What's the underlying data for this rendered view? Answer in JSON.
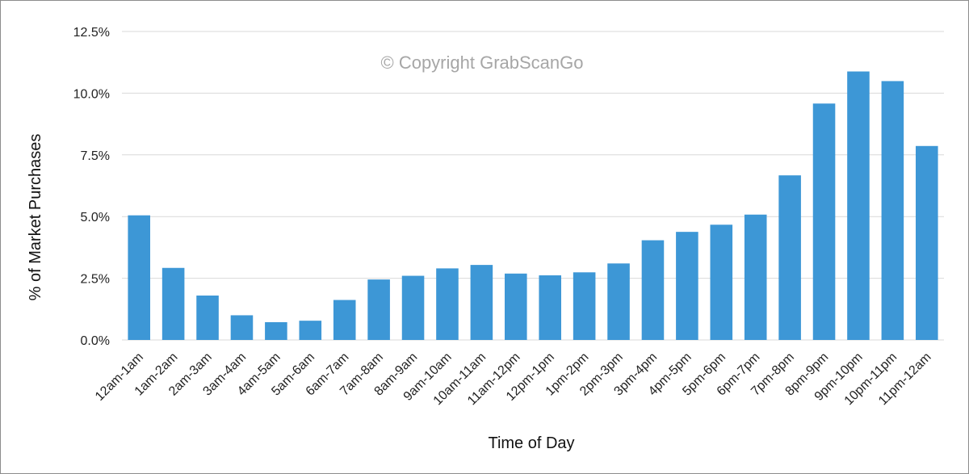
{
  "colors": {
    "bar": "#3d97d6",
    "grid": "#d9d9d9",
    "watermark": "#a6a6a6"
  },
  "watermark": "© Copyright GrabScanGo",
  "chart_data": {
    "type": "bar",
    "xlabel": "Time of Day",
    "ylabel": "% of Market Purchases",
    "ylim": [
      0,
      12.5
    ],
    "yticks": [
      0,
      2.5,
      5.0,
      7.5,
      10.0,
      12.5
    ],
    "ytick_labels": [
      "0.0%",
      "2.5%",
      "5.0%",
      "7.5%",
      "10.0%",
      "12.5%"
    ],
    "grid": true,
    "legend": "none",
    "categories": [
      "12am-1am",
      "1am-2am",
      "2am-3am",
      "3am-4am",
      "4am-5am",
      "5am-6am",
      "6am-7am",
      "7am-8am",
      "8am-9am",
      "9am-10am",
      "10am-11am",
      "11am-12pm",
      "12pm-1pm",
      "1pm-2pm",
      "2pm-3pm",
      "3pm-4pm",
      "4pm-5pm",
      "5pm-6pm",
      "6pm-7pm",
      "7pm-8pm",
      "8pm-9pm",
      "9pm-10pm",
      "10pm-11pm",
      "11pm-12am"
    ],
    "values": [
      5.05,
      2.92,
      1.8,
      1.0,
      0.72,
      0.78,
      1.62,
      2.45,
      2.6,
      2.9,
      3.04,
      2.69,
      2.62,
      2.74,
      3.1,
      4.04,
      4.38,
      4.67,
      5.08,
      6.67,
      9.58,
      10.88,
      10.49,
      7.86
    ]
  }
}
